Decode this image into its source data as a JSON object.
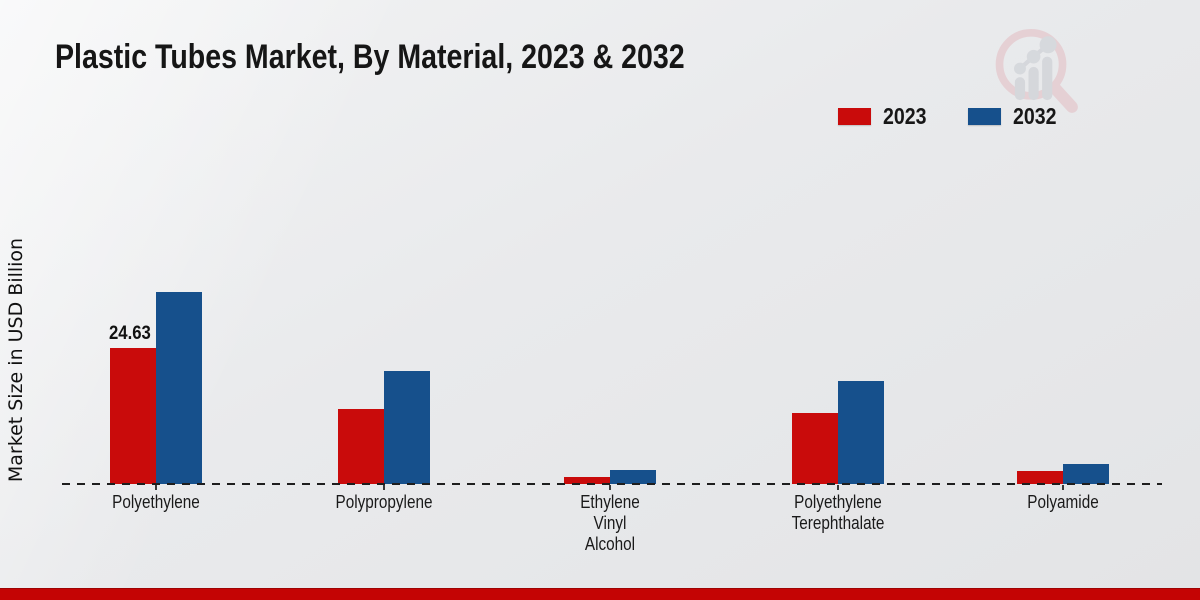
{
  "title": "Plastic Tubes Market, By Material, 2023 & 2032",
  "y_axis": {
    "label": "Market Size in USD Billion"
  },
  "legend": {
    "items": [
      {
        "label": "2023",
        "color": "#c90b0b"
      },
      {
        "label": "2032",
        "color": "#16508c"
      }
    ]
  },
  "footer": {
    "color": "#c40404"
  },
  "watermark": {
    "name": "magnifier-bar-chart-logo",
    "ring_color": "#e3bcc2",
    "bars_color": "#c6c9cf"
  },
  "chart_data": {
    "type": "bar",
    "categories": [
      "Polyethylene",
      "Polypropylene",
      "Ethylene\nVinyl\nAlcohol",
      "Polyethylene\nTerephthalate",
      "Polyamide"
    ],
    "series": [
      {
        "name": "2023",
        "color": "#c90b0b",
        "values": [
          24.63,
          13.6,
          1.3,
          12.9,
          2.4
        ]
      },
      {
        "name": "2032",
        "color": "#16508c",
        "values": [
          34.7,
          20.5,
          2.5,
          18.7,
          3.6
        ]
      }
    ],
    "title": "Plastic Tubes Market, By Material, 2023 & 2032",
    "xlabel": "",
    "ylabel": "Market Size in USD Billion",
    "ylim": [
      0,
      40
    ],
    "grid": false,
    "legend_position": "top-right",
    "baseline_style": "dashed",
    "data_labels": [
      {
        "series": "2023",
        "category": "Polyethylene",
        "text": "24.63"
      }
    ]
  }
}
